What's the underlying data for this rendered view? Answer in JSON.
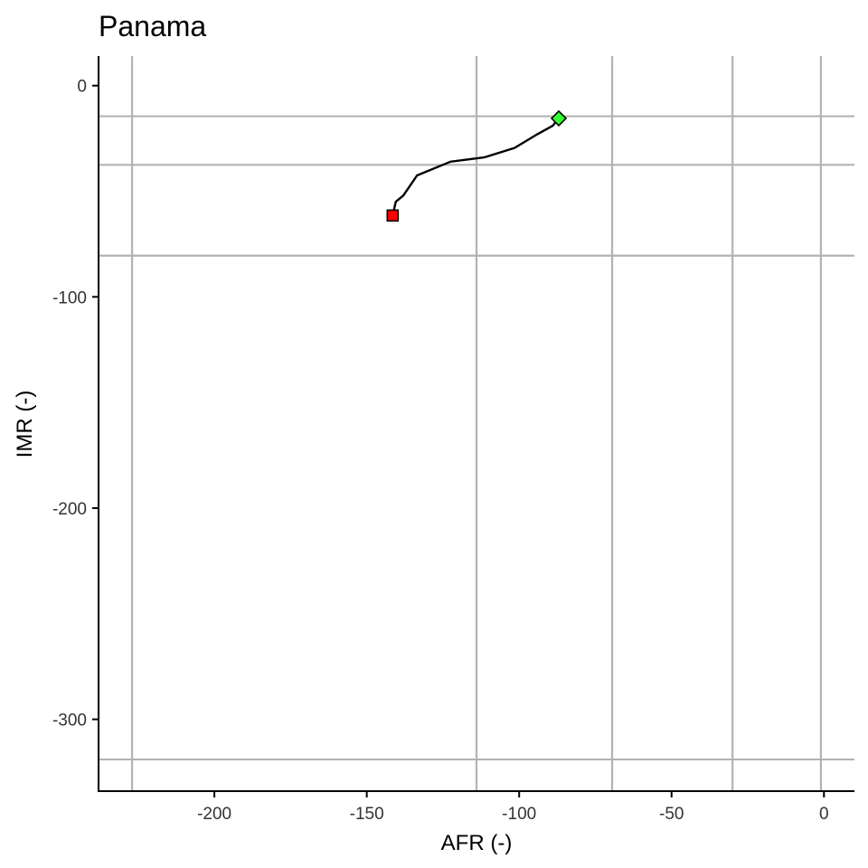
{
  "chart_data": {
    "type": "line",
    "title": "Panama",
    "xlabel": "AFR (-)",
    "ylabel": "IMR (-)",
    "xlim": [
      -238,
      10
    ],
    "ylim": [
      -334,
      14
    ],
    "xticks": [
      -200,
      -150,
      -100,
      -50,
      0
    ],
    "yticks": [
      0,
      -100,
      -200,
      -300
    ],
    "grid": false,
    "reference_lines": {
      "vertical": [
        -227,
        -114,
        -69.5,
        -30,
        -1
      ],
      "horizontal": [
        -14.5,
        -37.5,
        -80.5,
        -319
      ]
    },
    "series": [
      {
        "x": [
          -141.5,
          -140.5,
          -138,
          -133.5,
          -122.5,
          -111.5,
          -101.5,
          -94,
          -89,
          -87
        ],
        "y": [
          -61.5,
          -55,
          -52,
          -42.5,
          -36,
          -34,
          -29.5,
          -23,
          -19,
          -15.5
        ],
        "color": "#000000"
      }
    ],
    "markers": [
      {
        "shape": "square",
        "x": -141.5,
        "y": -61.5,
        "color": "#ff0000"
      },
      {
        "shape": "diamond",
        "x": -87,
        "y": -15.5,
        "color": "#33ff33"
      }
    ]
  }
}
